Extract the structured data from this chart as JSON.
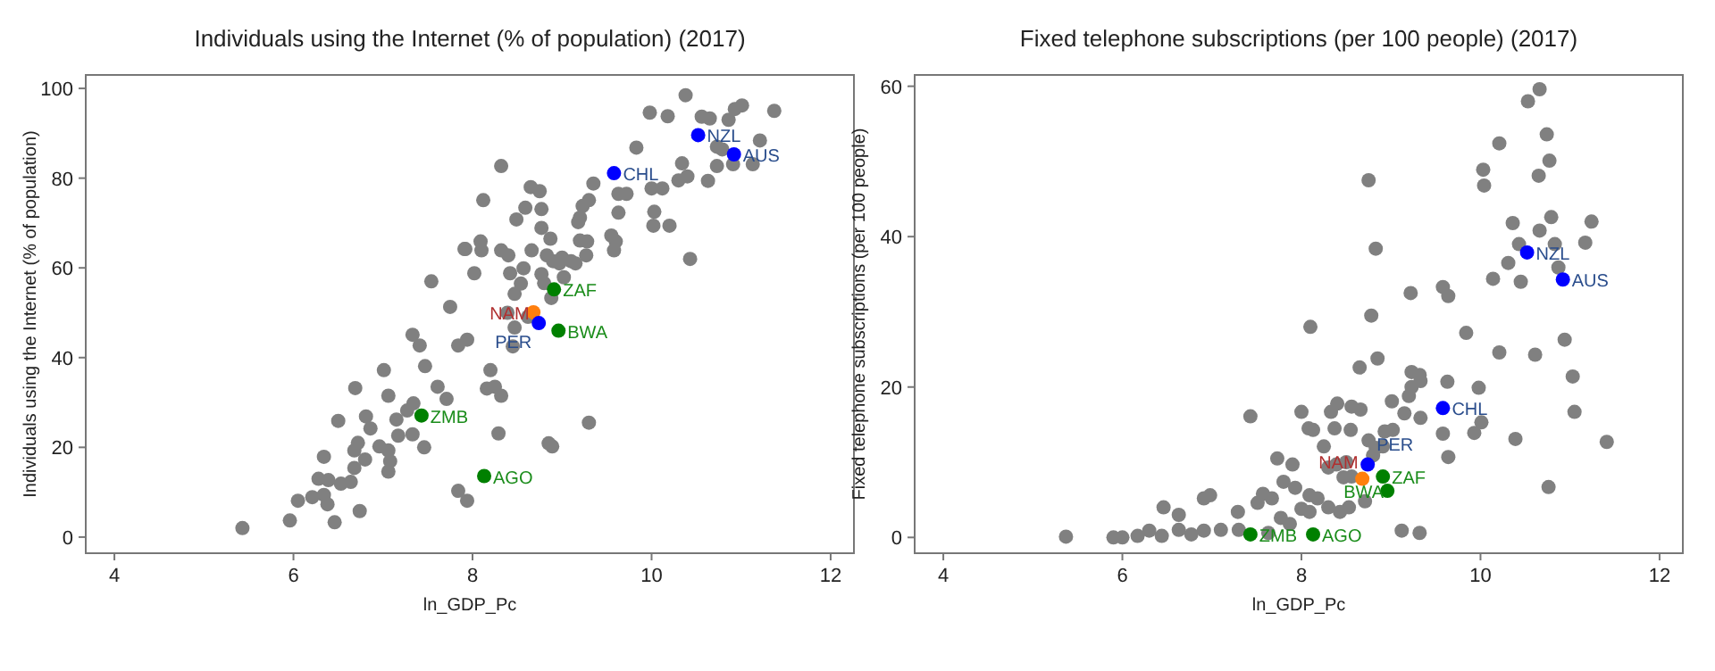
{
  "chart_data": [
    {
      "type": "scatter",
      "title": "Individuals using the Internet (% of population) (2017)",
      "xlabel": "ln_GDP_Pc",
      "ylabel": "Individuals using the Internet (% of population)",
      "xlim": [
        3.68,
        12.26
      ],
      "ylim": [
        -3.6,
        103
      ],
      "xticks": [
        4,
        6,
        8,
        10,
        12
      ],
      "yticks": [
        0,
        20,
        40,
        60,
        80,
        100
      ],
      "grid": false,
      "marker": "circle",
      "series": [
        {
          "color": "#808080",
          "x": [
            5.43,
            5.96,
            6.46,
            6.74,
            6.05,
            6.21,
            6.34,
            6.38,
            6.28,
            6.39,
            6.34,
            6.53,
            6.64,
            6.68,
            6.8,
            6.68,
            6.72,
            6.86,
            6.81,
            6.96,
            7.06,
            7.08,
            7.06,
            6.5,
            6.69,
            7.01,
            7.06,
            7.15,
            7.27,
            7.34,
            7.17,
            7.33,
            7.46,
            7.47,
            7.61,
            7.71,
            7.33,
            7.41,
            7.75,
            7.54,
            7.84,
            7.94,
            7.92,
            7.84,
            7.94,
            10.38,
            9.98,
            10.18,
            10.56,
            10.65,
            10.86,
            10.93,
            11.01,
            11.37,
            10.73,
            10.79,
            11.21,
            11.13,
            10.73,
            10.63,
            10.91,
            10.34,
            10.4,
            10.3,
            9.83,
            10.12,
            10,
            9.63,
            9.72,
            9.63,
            10.03,
            10.02,
            10.2,
            10.43,
            9.35,
            9.3,
            9.23,
            9.2,
            9.18,
            9.55,
            9.6,
            9.58,
            9.2,
            9.28,
            9.27,
            9.15,
            9,
            8.87,
            8.77,
            8.65,
            8.75,
            8.32,
            8.12,
            8.49,
            8.59,
            8.77,
            7.91,
            8.09,
            8.1,
            8.02,
            8.32,
            8.4,
            8.66,
            8.83,
            8.9,
            8.97,
            9.1,
            8.42,
            8.57,
            8.54,
            8.47,
            8.77,
            8.8,
            9.02,
            8.88,
            8.39,
            8.47,
            8.45,
            8.62,
            8.2,
            8.16,
            8.25,
            8.32,
            8.29,
            8.85,
            8.89,
            9.3
          ],
          "values": [
            2,
            3.7,
            3.3,
            5.8,
            8.1,
            8.9,
            9.4,
            7.3,
            13,
            12.7,
            17.9,
            11.9,
            12.3,
            15.4,
            17.3,
            19.3,
            21,
            24.2,
            26.9,
            20.2,
            19.3,
            16.9,
            14.6,
            25.9,
            33.2,
            37.2,
            31.5,
            26.2,
            28.2,
            29.8,
            22.6,
            22.9,
            20,
            38.1,
            33.5,
            30.8,
            45.1,
            42.7,
            51.3,
            57,
            42.7,
            44,
            64.2,
            10.3,
            8.1,
            98.5,
            94.6,
            93.8,
            93.7,
            93.3,
            93,
            95.4,
            96.2,
            95,
            87,
            86.4,
            88.4,
            83.1,
            82.7,
            79.4,
            83.1,
            83.3,
            80.4,
            79.5,
            86.8,
            77.7,
            77.7,
            76.5,
            76.5,
            72.3,
            72.5,
            69.4,
            69.4,
            62,
            78.8,
            75.1,
            73.8,
            71.2,
            70.2,
            67.2,
            65.9,
            63.9,
            66.1,
            65.9,
            62.8,
            61,
            62.3,
            66.5,
            68.9,
            78,
            77.1,
            82.7,
            75.1,
            70.8,
            73.4,
            73.1,
            64.2,
            65.9,
            63.9,
            58.8,
            63.9,
            62.8,
            63.9,
            62.8,
            61.5,
            61,
            61.5,
            58.8,
            59.9,
            56.5,
            54.2,
            58.6,
            56.6,
            57.9,
            53.3,
            50,
            46.7,
            42.5,
            49.1,
            37.2,
            33.1,
            33.5,
            31.5,
            23.1,
            20.9,
            20.2,
            25.5
          ]
        },
        {
          "color": "#008000",
          "x": [
            7.43,
            8.13,
            8.91,
            8.96
          ],
          "values": [
            27.1,
            13.6,
            55.2,
            46
          ]
        },
        {
          "color": "#ff7f0e",
          "x": [
            8.68
          ],
          "values": [
            50.1
          ]
        },
        {
          "color": "#0000ff",
          "x": [
            8.74,
            9.58,
            10.52,
            10.92
          ],
          "values": [
            47.7,
            81.1,
            89.6,
            85.3
          ]
        }
      ],
      "annotations": [
        {
          "text": "ZMB",
          "x": 7.43,
          "y": 27.1
        },
        {
          "text": "AGO",
          "x": 8.13,
          "y": 13.6
        },
        {
          "text": "ZAF",
          "x": 8.91,
          "y": 55.2
        },
        {
          "text": "BWA",
          "x": 8.96,
          "y": 46
        },
        {
          "text": "NAM",
          "x": 8.68,
          "y": 50.1
        },
        {
          "text": "PER",
          "x": 8.74,
          "y": 47.7
        },
        {
          "text": "CHL",
          "x": 9.58,
          "y": 81.1
        },
        {
          "text": "NZL",
          "x": 10.52,
          "y": 89.6
        },
        {
          "text": "AUS",
          "x": 10.92,
          "y": 85.3
        }
      ]
    },
    {
      "type": "scatter",
      "title": "Fixed telephone subscriptions (per 100 people) (2017)",
      "xlabel": "ln_GDP_Pc",
      "ylabel": "Fixed telephone subscriptions (per 100 people)",
      "xlim": [
        3.68,
        12.26
      ],
      "ylim": [
        -2.1,
        61.5
      ],
      "xticks": [
        4,
        6,
        8,
        10,
        12
      ],
      "yticks": [
        0,
        20,
        40,
        60
      ],
      "grid": false,
      "marker": "circle",
      "series": [
        {
          "color": "#808080",
          "x": [
            5.37,
            5.9,
            6,
            6.17,
            6.3,
            6.44,
            6.63,
            6.63,
            6.46,
            6.77,
            6.91,
            6.91,
            6.98,
            7.1,
            7.29,
            7.3,
            7.51,
            7.57,
            7.67,
            7.77,
            7.73,
            7.8,
            7.43,
            7.63,
            10.66,
            10.53,
            10.74,
            10.21,
            10.77,
            10.03,
            10.04,
            10.65,
            8.75,
            10.36,
            10.79,
            10.66,
            11.24,
            11.17,
            10.83,
            10.43,
            10.31,
            10.45,
            10.14,
            10.87,
            8.83,
            9.22,
            9.58,
            9.64,
            8.78,
            8.1,
            9.84,
            10.94,
            10.21,
            10.61,
            8.85,
            8.65,
            11.03,
            9.23,
            9.32,
            9.33,
            9.23,
            9.63,
            9.98,
            9.01,
            9.2,
            8.4,
            8.56,
            8.66,
            8,
            8.33,
            8.08,
            8.13,
            8.37,
            8.55,
            9.15,
            9.33,
            10.01,
            9.93,
            9.58,
            11.05,
            10.39,
            11.41,
            8.93,
            9.02,
            8.75,
            8.83,
            8.91,
            8.25,
            8.8,
            9.64,
            7.9,
            8.3,
            8.39,
            8.5,
            8.47,
            8.56,
            7.93,
            8.09,
            8.18,
            8,
            8.09,
            8.3,
            8.43,
            8.53,
            8.71,
            7.87,
            10.76,
            9.12,
            9.32
          ],
          "values": [
            0.1,
            0,
            0,
            0.2,
            0.9,
            0.2,
            1,
            3,
            4,
            0.4,
            0.9,
            5.2,
            5.6,
            1,
            3.4,
            1,
            4.6,
            5.8,
            5.2,
            2.6,
            10.5,
            7.4,
            16.1,
            0.6,
            59.6,
            58,
            53.6,
            52.4,
            50.1,
            48.9,
            46.8,
            48.1,
            47.5,
            41.8,
            42.6,
            40.8,
            42,
            39.2,
            39,
            39,
            36.5,
            34,
            34.4,
            35.9,
            38.4,
            32.5,
            33.3,
            32.1,
            29.5,
            28,
            27.2,
            26.3,
            24.6,
            24.3,
            23.8,
            22.6,
            21.4,
            22,
            21.6,
            20.8,
            20,
            20.7,
            19.9,
            18.1,
            18.8,
            17.8,
            17.4,
            17,
            16.7,
            16.7,
            14.5,
            14.3,
            14.5,
            14.3,
            16.5,
            15.9,
            15.3,
            13.9,
            13.8,
            16.7,
            13.1,
            12.7,
            14.1,
            14.3,
            12.9,
            11.9,
            12.1,
            12.1,
            10.9,
            10.7,
            9.7,
            9.3,
            9.7,
            10,
            8,
            8.1,
            6.6,
            5.6,
            5.2,
            3.8,
            3.4,
            4,
            3.4,
            4,
            4.8,
            1.8,
            6.7,
            0.9,
            0.6
          ]
        },
        {
          "color": "#008000",
          "x": [
            7.43,
            8.13,
            8.91,
            8.96
          ],
          "values": [
            0.4,
            0.4,
            8.1,
            6.2
          ]
        },
        {
          "color": "#ff7f0e",
          "x": [
            8.68
          ],
          "values": [
            7.8
          ]
        },
        {
          "color": "#0000ff",
          "x": [
            8.74,
            9.58,
            10.52,
            10.92
          ],
          "values": [
            9.7,
            17.2,
            37.9,
            34.3
          ]
        }
      ],
      "annotations": [
        {
          "text": "ZMB",
          "x": 7.43,
          "y": 0.4
        },
        {
          "text": "AGO",
          "x": 8.13,
          "y": 0.4
        },
        {
          "text": "ZAF",
          "x": 8.91,
          "y": 8.1
        },
        {
          "text": "BWA",
          "x": 8.96,
          "y": 6.2
        },
        {
          "text": "NAM",
          "x": 8.68,
          "y": 7.8
        },
        {
          "text": "PER",
          "x": 8.74,
          "y": 9.7
        },
        {
          "text": "CHL",
          "x": 9.58,
          "y": 17.2
        },
        {
          "text": "NZL",
          "x": 10.52,
          "y": 37.9
        },
        {
          "text": "AUS",
          "x": 10.92,
          "y": 34.3
        }
      ]
    }
  ]
}
